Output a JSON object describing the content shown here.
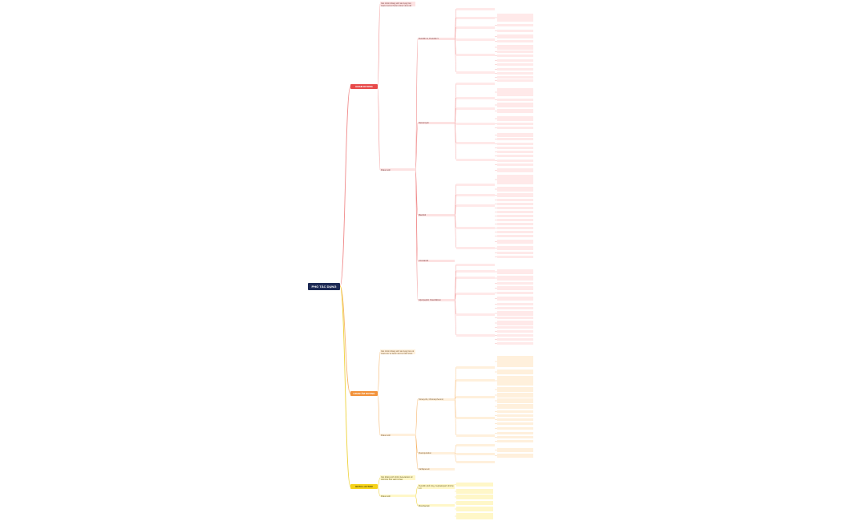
{
  "root": {
    "label": "PHỔ TÁC DỤNG"
  },
  "branches": [
    {
      "label": "GRAM DƯƠNG",
      "color": "#e84a4a"
    },
    {
      "label": "GRAM ÂM DƯƠNG",
      "color": "#f2923a"
    },
    {
      "label": "BETA-LACTAM",
      "color": "#f5d21a"
    }
  ],
  "nodes": {
    "r_intro": "Các nhóm kháng sinh tác dụng trên Gram dương thường được dùng để điều trị",
    "r_mid": "Kháng sinh",
    "r_g1": "Penicillin G, Penicillin V",
    "r_g2": "Vancomycin",
    "r_g3": "Macrolid",
    "r_g4": "Lincosamid",
    "r_g5": "Glycopeptid, Oxazolidinon",
    "o_intro": "Các nhóm kháng sinh tác dụng trên cả Gram âm và Gram dương (phổ rộng)",
    "o_mid": "Kháng sinh",
    "o_g1": "Tetracyclin, Chloramphenicol, Aminoglycosid",
    "o_g2": "Fluoroquinolon",
    "o_g3": "Carbapenem",
    "y_intro": "Các kháng sinh nhóm beta-lactam ức chế tổng hợp vách tế bào",
    "y_mid": "Kháng sinh",
    "y_g1": "Penicillin phổ rộng, Cephalosporin thế hệ 1-4",
    "y_g2": "Monobactam"
  }
}
